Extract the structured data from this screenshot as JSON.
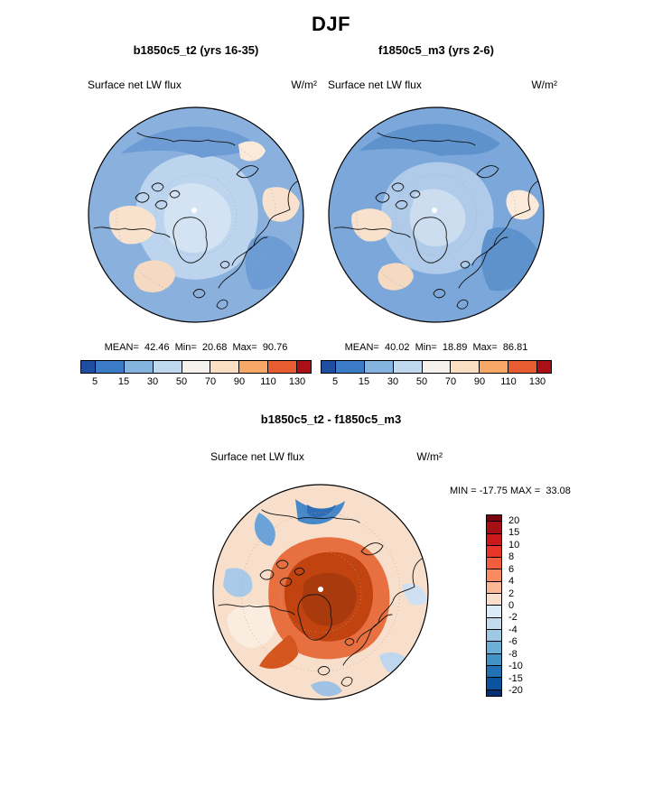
{
  "title": "DJF",
  "panels": [
    {
      "header": "b1850c5_t2 (yrs 16-35)",
      "field": "Surface net LW flux",
      "units": "W/m²",
      "stats": "MEAN=  42.46  Min=  20.68  Max=  90.76",
      "ticks": [
        "5",
        "15",
        "30",
        "50",
        "70",
        "90",
        "110",
        "130"
      ]
    },
    {
      "header": "f1850c5_m3 (yrs 2-6)",
      "field": "Surface net LW flux",
      "units": "W/m²",
      "stats": "MEAN=  40.02  Min=  18.89  Max=  86.81",
      "ticks": [
        "5",
        "15",
        "30",
        "50",
        "70",
        "90",
        "110",
        "130"
      ]
    }
  ],
  "diff": {
    "header": "b1850c5_t2 - f1850c5_m3",
    "field": "Surface net LW flux",
    "units": "W/m²",
    "range": "MIN = -17.75 MAX =  33.08",
    "labels": [
      "20",
      "15",
      "10",
      "8",
      "6",
      "4",
      "2",
      "0",
      "-2",
      "-4",
      "-6",
      "-8",
      "-10",
      "-15",
      "-20"
    ]
  },
  "palettes": {
    "flux": [
      "#1f4da0",
      "#3c7cc6",
      "#85b3e0",
      "#c0d9ef",
      "#f5f2ee",
      "#fbdfc2",
      "#f8a866",
      "#e85c31",
      "#aa1016"
    ],
    "diff": [
      "#7a0510",
      "#a50f15",
      "#cb181d",
      "#e93528",
      "#f25c3f",
      "#fa8a62",
      "#fbb796",
      "#fadfce",
      "#dcebf6",
      "#c3dbef",
      "#9ec9e2",
      "#6baed6",
      "#4292c6",
      "#2171b5",
      "#0a539e",
      "#083071"
    ]
  },
  "chart_data": [
    {
      "type": "heatmap",
      "title": "b1850c5_t2 (yrs 16-35)",
      "season": "DJF",
      "variable": "Surface net LW flux",
      "units": "W/m²",
      "projection": "polar stereographic (Arctic)",
      "mean": 42.46,
      "min": 20.68,
      "max": 90.76,
      "contour_levels": [
        5,
        15,
        30,
        50,
        70,
        90,
        110,
        130
      ],
      "legend_position": "bottom horizontal"
    },
    {
      "type": "heatmap",
      "title": "f1850c5_m3 (yrs 2-6)",
      "season": "DJF",
      "variable": "Surface net LW flux",
      "units": "W/m²",
      "projection": "polar stereographic (Arctic)",
      "mean": 40.02,
      "min": 18.89,
      "max": 86.81,
      "contour_levels": [
        5,
        15,
        30,
        50,
        70,
        90,
        110,
        130
      ],
      "legend_position": "bottom horizontal"
    },
    {
      "type": "heatmap",
      "title": "b1850c5_t2 - f1850c5_m3",
      "season": "DJF",
      "variable": "Surface net LW flux",
      "units": "W/m²",
      "projection": "polar stereographic (Arctic)",
      "min": -17.75,
      "max": 33.08,
      "contour_levels": [
        -20,
        -15,
        -10,
        -8,
        -6,
        -4,
        -2,
        0,
        2,
        4,
        6,
        8,
        10,
        15,
        20
      ],
      "legend_position": "right vertical"
    }
  ]
}
